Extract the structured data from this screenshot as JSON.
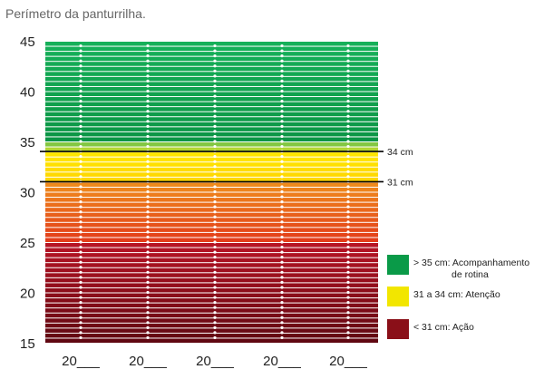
{
  "chart_data": {
    "type": "heatmap",
    "title": "Perímetro da panturrilha.",
    "ylim": [
      15,
      45
    ],
    "y_ticks": [
      "15",
      "20",
      "25",
      "30",
      "35",
      "40",
      "45"
    ],
    "x_labels": [
      "20___",
      "20___",
      "20___",
      "20___",
      "20___"
    ],
    "reference_lines": [
      {
        "value": 34,
        "label": "34 cm"
      },
      {
        "value": 31,
        "label": "31 cm"
      }
    ],
    "bands": [
      {
        "range": [
          35,
          45
        ],
        "color": "#0a9a48"
      },
      {
        "range": [
          34,
          35
        ],
        "color": "#8dc63f"
      },
      {
        "range": [
          31,
          34
        ],
        "color": "#ffe000"
      },
      {
        "range": [
          25,
          31
        ],
        "color": "#e85c1a"
      },
      {
        "range": [
          15,
          25
        ],
        "color": "#7a0c14"
      }
    ],
    "legend": {
      "position": "right",
      "items": [
        {
          "line1": "> 35 cm: Acompanhamento",
          "line2": "de rotina",
          "color": "#0a9a48"
        },
        {
          "line1": "31 a 34 cm: Atenção",
          "line2": "",
          "color": "#f2e600"
        },
        {
          "line1": "< 31 cm: Ação",
          "line2": "",
          "color": "#8a0f18"
        }
      ]
    }
  }
}
